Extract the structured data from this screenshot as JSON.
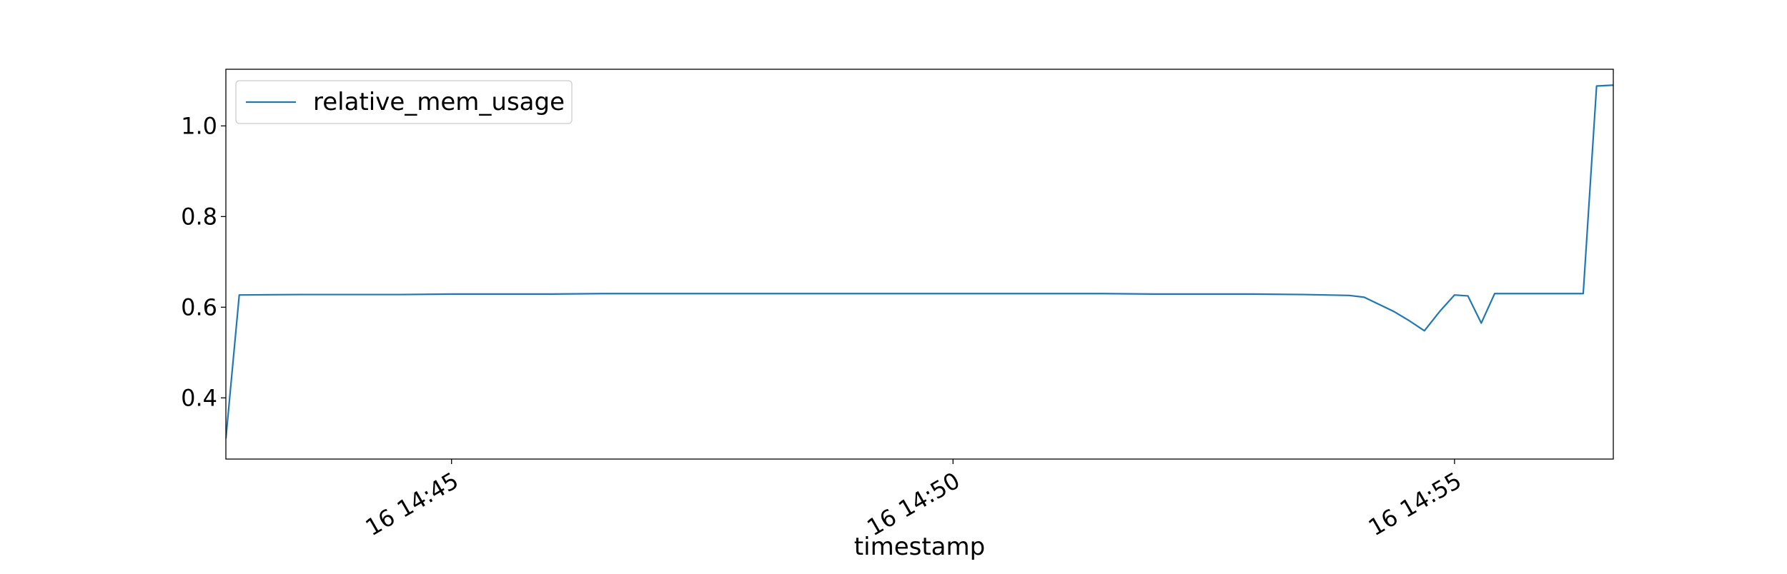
{
  "chart_data": {
    "type": "line",
    "title": "",
    "xlabel": "timestamp",
    "ylabel": "",
    "x_unit": "datetime (day 16, HH:MM:SS)",
    "xlim": [
      "16 14:42:45",
      "16 14:56:35"
    ],
    "ylim": [
      0.265,
      1.125
    ],
    "x_ticks": [
      {
        "label": "16 14:45",
        "value": "16 14:45:00"
      },
      {
        "label": "16 14:50",
        "value": "16 14:50:00"
      },
      {
        "label": "16 14:55",
        "value": "16 14:55:00"
      }
    ],
    "y_ticks": [
      {
        "label": "0.4",
        "value": 0.4
      },
      {
        "label": "0.6",
        "value": 0.6
      },
      {
        "label": "0.8",
        "value": 0.8
      },
      {
        "label": "1.0",
        "value": 1.0
      }
    ],
    "grid": false,
    "legend_position": "top-left",
    "series": [
      {
        "name": "relative_mem_usage",
        "color": "#1f77b4",
        "x": [
          "16 14:42:45",
          "16 14:42:53",
          "16 14:43:30",
          "16 14:44:00",
          "16 14:44:30",
          "16 14:45:00",
          "16 14:45:30",
          "16 14:46:00",
          "16 14:46:30",
          "16 14:47:00",
          "16 14:47:30",
          "16 14:48:00",
          "16 14:48:30",
          "16 14:49:00",
          "16 14:49:30",
          "16 14:50:00",
          "16 14:50:30",
          "16 14:51:00",
          "16 14:51:30",
          "16 14:52:00",
          "16 14:52:30",
          "16 14:53:00",
          "16 14:53:30",
          "16 14:53:57",
          "16 14:54:06",
          "16 14:54:24",
          "16 14:54:33",
          "16 14:54:42",
          "16 14:54:51",
          "16 14:55:00",
          "16 14:55:08",
          "16 14:55:16",
          "16 14:55:24",
          "16 14:55:35",
          "16 14:55:50",
          "16 14:56:03",
          "16 14:56:08",
          "16 14:56:17",
          "16 14:56:25",
          "16 14:56:35"
        ],
        "y": [
          0.31,
          0.627,
          0.628,
          0.628,
          0.628,
          0.629,
          0.629,
          0.629,
          0.63,
          0.63,
          0.63,
          0.63,
          0.63,
          0.63,
          0.63,
          0.63,
          0.63,
          0.63,
          0.63,
          0.629,
          0.629,
          0.629,
          0.628,
          0.626,
          0.622,
          0.59,
          0.57,
          0.548,
          0.59,
          0.627,
          0.625,
          0.565,
          0.63,
          0.63,
          0.63,
          0.63,
          0.63,
          0.63,
          1.088,
          1.09
        ]
      }
    ]
  }
}
